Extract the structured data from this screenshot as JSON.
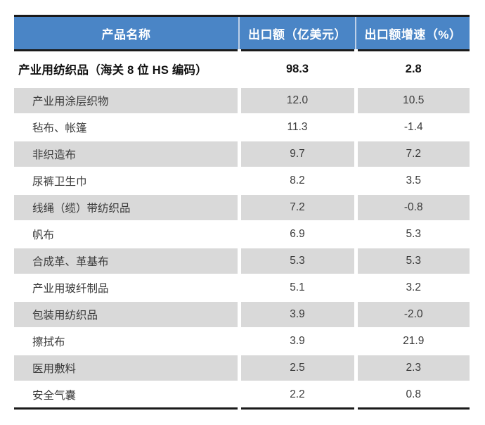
{
  "table": {
    "columns": [
      {
        "label": "产品名称"
      },
      {
        "label": "出口额（亿美元）"
      },
      {
        "label": "出口额增速（%）"
      }
    ],
    "summary_row": {
      "name": "产业用纺织品（海关 8 位 HS 编码）",
      "export_value": "98.3",
      "growth": "2.8"
    },
    "rows": [
      {
        "name": "产业用涂层织物",
        "export_value": "12.0",
        "growth": "10.5"
      },
      {
        "name": "毡布、帐篷",
        "export_value": "11.3",
        "growth": "-1.4"
      },
      {
        "name": "非织造布",
        "export_value": "9.7",
        "growth": "7.2"
      },
      {
        "name": "尿裤卫生巾",
        "export_value": "8.2",
        "growth": "3.5"
      },
      {
        "name": "线绳（缆）带纺织品",
        "export_value": "7.2",
        "growth": "-0.8"
      },
      {
        "name": "帆布",
        "export_value": "6.9",
        "growth": "5.3"
      },
      {
        "name": "合成革、革基布",
        "export_value": "5.3",
        "growth": "5.3"
      },
      {
        "name": "产业用玻纤制品",
        "export_value": "5.1",
        "growth": "3.2"
      },
      {
        "name": "包装用纺织品",
        "export_value": "3.9",
        "growth": "-2.0"
      },
      {
        "name": "擦拭布",
        "export_value": "3.9",
        "growth": "21.9"
      },
      {
        "name": "医用敷料",
        "export_value": "2.5",
        "growth": "2.3"
      },
      {
        "name": "安全气囊",
        "export_value": "2.2",
        "growth": "0.8"
      }
    ]
  },
  "colors": {
    "header_bg": "#4a85c6",
    "header_text": "#ffffff",
    "alt_row_bg": "#d9d9d9",
    "rule_color": "#1a1a1a",
    "body_text": "#3a3a3a"
  }
}
